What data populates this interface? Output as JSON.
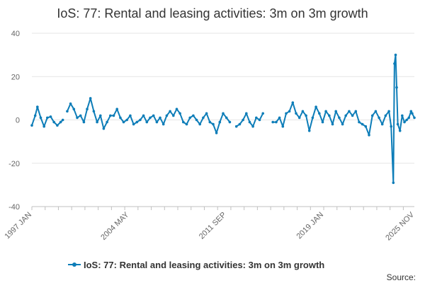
{
  "chart_data": {
    "type": "line",
    "title": "IoS: 77: Rental and leasing activities: 3m on 3m growth",
    "xlabel": "",
    "ylabel": "",
    "ylim": [
      -40,
      40
    ],
    "yticks": [
      -40,
      -20,
      0,
      20,
      40
    ],
    "xlim": [
      "1997-01",
      "2025-11"
    ],
    "xticks": [
      "1997 JAN",
      "2004 MAY",
      "2011 SEP",
      "2019 JAN",
      "2025 NOV"
    ],
    "grid": "horizontal",
    "legend": "bottom",
    "color": "#0d7db8",
    "series": [
      {
        "name": "IoS: 77: Rental and leasing activities: 3m on 3m growth",
        "points": [
          [
            "1997-01",
            -2.5
          ],
          [
            "1997-04",
            2
          ],
          [
            "1997-06",
            6
          ],
          [
            "1997-09",
            1
          ],
          [
            "1997-12",
            -3
          ],
          [
            "1998-03",
            1
          ],
          [
            "1998-06",
            1.5
          ],
          [
            "1998-09",
            -1
          ],
          [
            "1998-12",
            -2.5
          ],
          [
            "1999-03",
            -1
          ],
          [
            "1999-05",
            0
          ],
          [
            "1999-09",
            4
          ],
          [
            "1999-12",
            7.5
          ],
          [
            "2000-03",
            5
          ],
          [
            "2000-06",
            1
          ],
          [
            "2000-09",
            2
          ],
          [
            "2000-12",
            -1
          ],
          [
            "2001-03",
            5
          ],
          [
            "2001-06",
            10
          ],
          [
            "2001-09",
            4
          ],
          [
            "2001-12",
            -1
          ],
          [
            "2002-03",
            2
          ],
          [
            "2002-06",
            -4
          ],
          [
            "2002-09",
            -1
          ],
          [
            "2002-12",
            2
          ],
          [
            "2003-03",
            2
          ],
          [
            "2003-06",
            5
          ],
          [
            "2003-09",
            1
          ],
          [
            "2003-12",
            -1
          ],
          [
            "2004-03",
            0
          ],
          [
            "2004-06",
            2
          ],
          [
            "2004-09",
            -2
          ],
          [
            "2004-12",
            -1
          ],
          [
            "2005-03",
            0
          ],
          [
            "2005-06",
            2
          ],
          [
            "2005-09",
            -1
          ],
          [
            "2005-12",
            1
          ],
          [
            "2006-03",
            2
          ],
          [
            "2006-06",
            -1
          ],
          [
            "2006-09",
            1
          ],
          [
            "2006-12",
            -2
          ],
          [
            "2007-03",
            2
          ],
          [
            "2007-06",
            4
          ],
          [
            "2007-09",
            2
          ],
          [
            "2007-12",
            5
          ],
          [
            "2008-03",
            3
          ],
          [
            "2008-06",
            -1
          ],
          [
            "2008-09",
            -2
          ],
          [
            "2008-12",
            1
          ],
          [
            "2009-03",
            2
          ],
          [
            "2009-06",
            0
          ],
          [
            "2009-09",
            -2
          ],
          [
            "2009-12",
            1
          ],
          [
            "2010-03",
            3
          ],
          [
            "2010-06",
            -1
          ],
          [
            "2010-09",
            -2
          ],
          [
            "2010-12",
            -6
          ],
          [
            "2011-03",
            -1
          ],
          [
            "2011-06",
            3
          ],
          [
            "2011-09",
            1
          ],
          [
            "2011-12",
            -1
          ],
          [
            "2012-06",
            -3
          ],
          [
            "2012-09",
            -2
          ],
          [
            "2012-12",
            0
          ],
          [
            "2013-03",
            3
          ],
          [
            "2013-06",
            -1
          ],
          [
            "2013-09",
            -3
          ],
          [
            "2013-12",
            1
          ],
          [
            "2014-03",
            0
          ],
          [
            "2014-06",
            3
          ],
          [
            "2015-03",
            -1
          ],
          [
            "2015-06",
            -1
          ],
          [
            "2015-09",
            1
          ],
          [
            "2015-12",
            -3
          ],
          [
            "2016-03",
            3
          ],
          [
            "2016-06",
            4
          ],
          [
            "2016-09",
            8
          ],
          [
            "2016-12",
            3
          ],
          [
            "2017-03",
            1
          ],
          [
            "2017-06",
            4
          ],
          [
            "2017-09",
            2
          ],
          [
            "2017-12",
            -5
          ],
          [
            "2018-03",
            1
          ],
          [
            "2018-06",
            6
          ],
          [
            "2018-09",
            3
          ],
          [
            "2018-12",
            -1
          ],
          [
            "2019-03",
            4
          ],
          [
            "2019-06",
            2
          ],
          [
            "2019-09",
            -2
          ],
          [
            "2019-12",
            4
          ],
          [
            "2020-03",
            1
          ],
          [
            "2020-06",
            -2
          ],
          [
            "2020-09",
            2
          ],
          [
            "2020-12",
            4
          ],
          [
            "2021-03",
            2
          ],
          [
            "2021-06",
            4
          ],
          [
            "2021-09",
            -1
          ],
          [
            "2021-12",
            -2
          ],
          [
            "2022-03",
            -3
          ],
          [
            "2022-06",
            -7
          ],
          [
            "2022-09",
            2
          ],
          [
            "2022-12",
            4
          ],
          [
            "2023-03",
            1
          ],
          [
            "2023-06",
            -2
          ],
          [
            "2023-09",
            2
          ],
          [
            "2023-12",
            4
          ],
          [
            "2024-02",
            -3
          ],
          [
            "2024-04",
            -29
          ],
          [
            "2024-05",
            26
          ],
          [
            "2024-06",
            30
          ],
          [
            "2024-07",
            15
          ],
          [
            "2024-08",
            -2
          ],
          [
            "2024-10",
            -5
          ],
          [
            "2024-12",
            2
          ],
          [
            "2025-02",
            -1
          ],
          [
            "2025-04",
            0
          ],
          [
            "2025-06",
            1
          ],
          [
            "2025-08",
            4
          ],
          [
            "2025-09",
            3
          ],
          [
            "2025-11",
            1
          ]
        ]
      }
    ]
  },
  "footer": {
    "source_label": "Source:"
  }
}
